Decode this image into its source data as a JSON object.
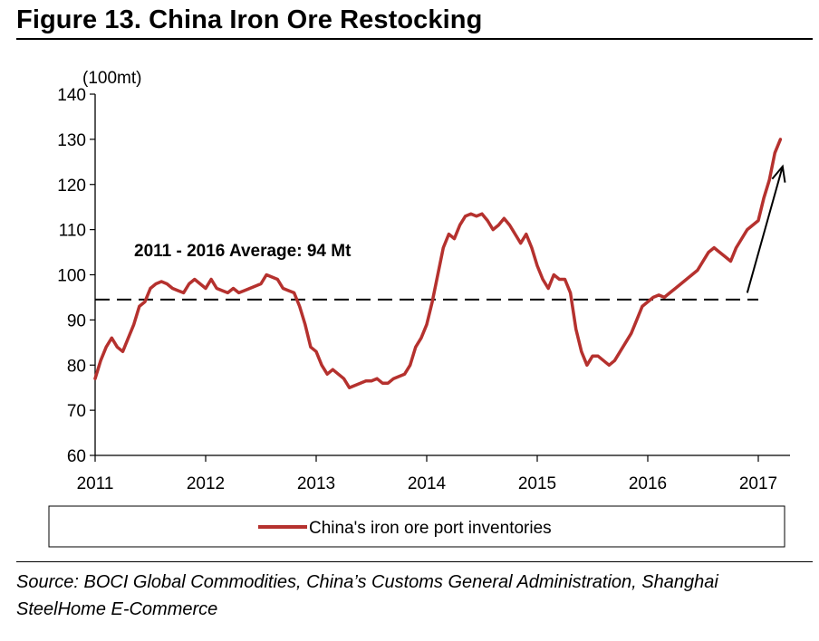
{
  "figure": {
    "title": "Figure 13. China Iron Ore Restocking",
    "source": "Source: BOCI Global Commodities, China’s Customs General Administration, Shanghai SteelHome E-Commerce"
  },
  "chart_data": {
    "type": "line",
    "title": "Figure 13. China Iron Ore Restocking",
    "ylabel": "(100mt)",
    "xlabel": "",
    "xlim": [
      2011,
      2017.3
    ],
    "ylim": [
      60,
      140
    ],
    "x_ticks": [
      2011,
      2012,
      2013,
      2014,
      2015,
      2016,
      2017
    ],
    "y_ticks": [
      60,
      70,
      80,
      90,
      100,
      110,
      120,
      130,
      140
    ],
    "grid": false,
    "legend": {
      "placement": "bottom",
      "framed": true
    },
    "series": [
      {
        "name": "China's iron ore port inventories",
        "color": "#b5312e",
        "points": [
          [
            2011.0,
            77
          ],
          [
            2011.05,
            81
          ],
          [
            2011.1,
            84
          ],
          [
            2011.15,
            86
          ],
          [
            2011.2,
            84
          ],
          [
            2011.25,
            83
          ],
          [
            2011.3,
            86
          ],
          [
            2011.35,
            89
          ],
          [
            2011.4,
            93
          ],
          [
            2011.45,
            94
          ],
          [
            2011.5,
            97
          ],
          [
            2011.55,
            98
          ],
          [
            2011.6,
            98.5
          ],
          [
            2011.65,
            98
          ],
          [
            2011.7,
            97
          ],
          [
            2011.75,
            96.5
          ],
          [
            2011.8,
            96
          ],
          [
            2011.85,
            98
          ],
          [
            2011.9,
            99
          ],
          [
            2011.95,
            98
          ],
          [
            2012.0,
            97
          ],
          [
            2012.05,
            99
          ],
          [
            2012.1,
            97
          ],
          [
            2012.15,
            96.5
          ],
          [
            2012.2,
            96
          ],
          [
            2012.25,
            97
          ],
          [
            2012.3,
            96
          ],
          [
            2012.35,
            96.5
          ],
          [
            2012.4,
            97
          ],
          [
            2012.45,
            97.5
          ],
          [
            2012.5,
            98
          ],
          [
            2012.55,
            100
          ],
          [
            2012.6,
            99.5
          ],
          [
            2012.65,
            99
          ],
          [
            2012.7,
            97
          ],
          [
            2012.75,
            96.5
          ],
          [
            2012.8,
            96
          ],
          [
            2012.85,
            93
          ],
          [
            2012.9,
            89
          ],
          [
            2012.95,
            84
          ],
          [
            2013.0,
            83
          ],
          [
            2013.05,
            80
          ],
          [
            2013.1,
            78
          ],
          [
            2013.15,
            79
          ],
          [
            2013.2,
            78
          ],
          [
            2013.25,
            77
          ],
          [
            2013.3,
            75
          ],
          [
            2013.35,
            75.5
          ],
          [
            2013.4,
            76
          ],
          [
            2013.45,
            76.5
          ],
          [
            2013.5,
            76.5
          ],
          [
            2013.55,
            77
          ],
          [
            2013.6,
            76
          ],
          [
            2013.65,
            76
          ],
          [
            2013.7,
            77
          ],
          [
            2013.75,
            77.5
          ],
          [
            2013.8,
            78
          ],
          [
            2013.85,
            80
          ],
          [
            2013.9,
            84
          ],
          [
            2013.95,
            86
          ],
          [
            2014.0,
            89
          ],
          [
            2014.05,
            94
          ],
          [
            2014.1,
            100
          ],
          [
            2014.15,
            106
          ],
          [
            2014.2,
            109
          ],
          [
            2014.25,
            108
          ],
          [
            2014.3,
            111
          ],
          [
            2014.35,
            113
          ],
          [
            2014.4,
            113.5
          ],
          [
            2014.45,
            113
          ],
          [
            2014.5,
            113.5
          ],
          [
            2014.55,
            112
          ],
          [
            2014.6,
            110
          ],
          [
            2014.65,
            111
          ],
          [
            2014.7,
            112.5
          ],
          [
            2014.75,
            111
          ],
          [
            2014.8,
            109
          ],
          [
            2014.85,
            107
          ],
          [
            2014.9,
            109
          ],
          [
            2014.95,
            106
          ],
          [
            2015.0,
            102
          ],
          [
            2015.05,
            99
          ],
          [
            2015.1,
            97
          ],
          [
            2015.15,
            100
          ],
          [
            2015.2,
            99
          ],
          [
            2015.25,
            99
          ],
          [
            2015.3,
            96
          ],
          [
            2015.35,
            88
          ],
          [
            2015.4,
            83
          ],
          [
            2015.45,
            80
          ],
          [
            2015.5,
            82
          ],
          [
            2015.55,
            82
          ],
          [
            2015.6,
            81
          ],
          [
            2015.65,
            80
          ],
          [
            2015.7,
            81
          ],
          [
            2015.75,
            83
          ],
          [
            2015.8,
            85
          ],
          [
            2015.85,
            87
          ],
          [
            2015.9,
            90
          ],
          [
            2015.95,
            93
          ],
          [
            2016.0,
            94
          ],
          [
            2016.05,
            95
          ],
          [
            2016.1,
            95.5
          ],
          [
            2016.15,
            95
          ],
          [
            2016.2,
            96
          ],
          [
            2016.25,
            97
          ],
          [
            2016.3,
            98
          ],
          [
            2016.35,
            99
          ],
          [
            2016.4,
            100
          ],
          [
            2016.45,
            101
          ],
          [
            2016.5,
            103
          ],
          [
            2016.55,
            105
          ],
          [
            2016.6,
            106
          ],
          [
            2016.65,
            105
          ],
          [
            2016.7,
            104
          ],
          [
            2016.75,
            103
          ],
          [
            2016.8,
            106
          ],
          [
            2016.85,
            108
          ],
          [
            2016.9,
            110
          ],
          [
            2016.95,
            111
          ],
          [
            2017.0,
            112
          ],
          [
            2017.05,
            117
          ],
          [
            2017.1,
            121
          ],
          [
            2017.15,
            127
          ],
          [
            2017.2,
            130
          ]
        ]
      }
    ],
    "annotations": [
      {
        "kind": "dashed-hline",
        "text": "2011 - 2016 Average: 94 Mt",
        "y": 94.5,
        "x_from": 2011,
        "x_to": 2017
      },
      {
        "kind": "arrow",
        "from": [
          2016.9,
          96
        ],
        "to": [
          2017.22,
          124
        ]
      }
    ]
  }
}
